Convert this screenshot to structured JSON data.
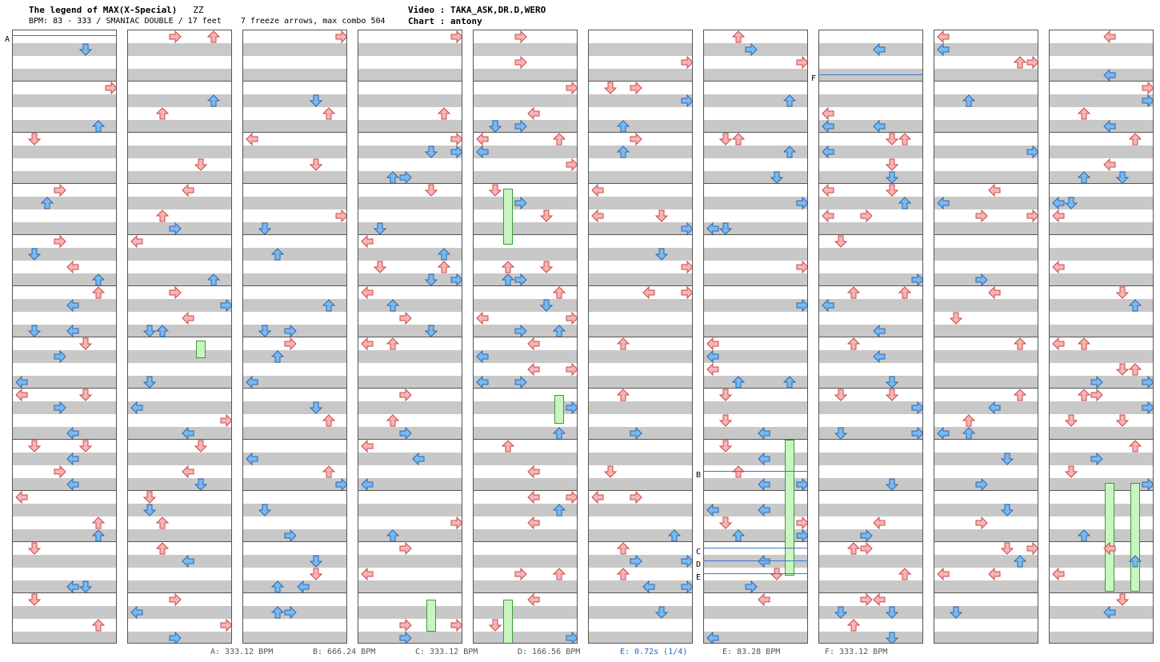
{
  "header": {
    "title": "The legend of MAX(X-Special)",
    "difficulty_mark": "ZZ",
    "bpm_line": "BPM: 83 - 333 / SMANIAC DOUBLE / 17 feet",
    "freeze_line": "7 freeze arrows, max combo 504",
    "video_line": "Video : TAKA_ASK,DR.D,WERO",
    "chart_line": "Chart : antony"
  },
  "colors": {
    "quarter_note": "#f8b4b4",
    "quarter_outline": "#c84848",
    "eighth_note": "#7ab8f0",
    "eighth_outline": "#2868b0",
    "freeze": "#c8f5c0",
    "freeze_outline": "#3a9a3a",
    "marker_line": "#3a78c8",
    "stripe": "#c8c8c8"
  },
  "markers": [
    {
      "label": "A",
      "column": 0
    },
    {
      "label": "B",
      "column": 6
    },
    {
      "label": "C",
      "column": 6
    },
    {
      "label": "D",
      "column": 6
    },
    {
      "label": "E",
      "column": 6
    },
    {
      "label": "F",
      "column": 7
    }
  ],
  "footer": {
    "labels": [
      {
        "text": "A: 333.12 BPM"
      },
      {
        "text": "B: 666.24 BPM"
      },
      {
        "text": "C: 333.12 BPM"
      },
      {
        "text": "D: 166.56 BPM"
      },
      {
        "text": "E: 0.72s (1/4)"
      },
      {
        "text": "E: 83.28 BPM"
      },
      {
        "text": "F: 333.12 BPM"
      }
    ]
  },
  "columns_count": 10,
  "lanes": [
    "left",
    "down",
    "up",
    "right",
    "left",
    "down",
    "up",
    "right"
  ],
  "icons": {
    "left": "left-arrow-icon",
    "down": "down-arrow-icon",
    "up": "up-arrow-icon",
    "right": "right-arrow-icon",
    "freeze": "freeze-arrow-icon"
  }
}
